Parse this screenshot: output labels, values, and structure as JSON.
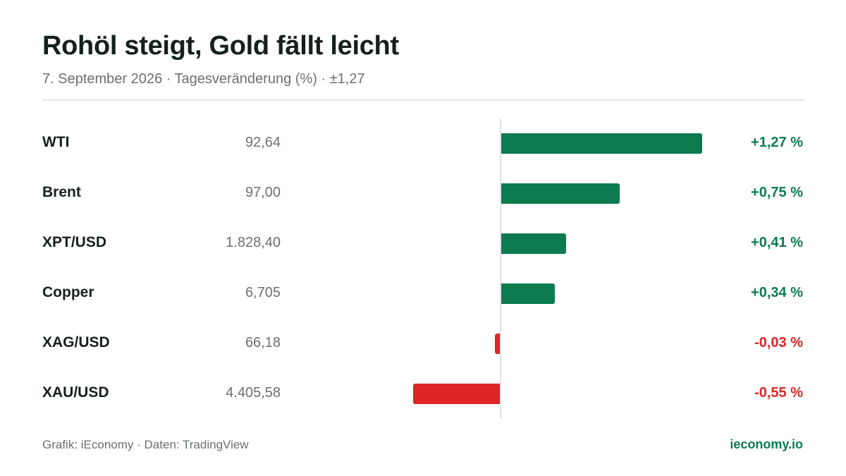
{
  "title": "Rohöl steigt, Gold fällt leicht",
  "subtitle": "7. September 2026 · Tagesveränderung (%) · ±1,27",
  "footer": {
    "credit": "Grafik: iEconomy · Daten: TradingView",
    "brand": "ieconomy.io"
  },
  "colors": {
    "positive": "#0d7a50",
    "negative": "#dc2626"
  },
  "chart_data": {
    "type": "bar",
    "orientation": "horizontal",
    "title": "Rohöl steigt, Gold fällt leicht",
    "subtitle": "7. September 2026 · Tagesveränderung (%) · ±1,27",
    "xlim": [
      -1.27,
      1.27
    ],
    "categories": [
      "WTI",
      "Brent",
      "XPT/USD",
      "Copper",
      "XAG/USD",
      "XAU/USD"
    ],
    "prices": [
      "92,64",
      "97,00",
      "1.828,40",
      "6,705",
      "66,18",
      "4.405,58"
    ],
    "values": [
      1.27,
      0.75,
      0.41,
      0.34,
      -0.03,
      -0.55
    ],
    "value_labels": [
      "+1,27 %",
      "+0,75 %",
      "+0,41 %",
      "+0,34 %",
      "-0,03 %",
      "-0,55 %"
    ]
  }
}
